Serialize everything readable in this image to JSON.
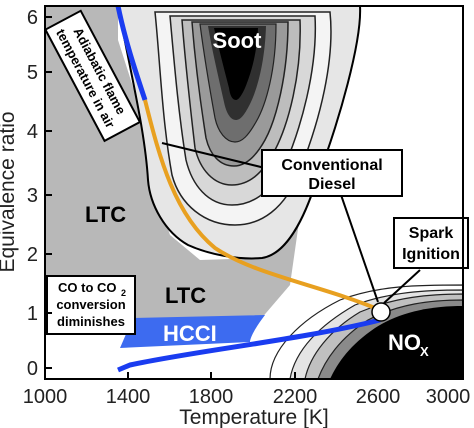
{
  "axes": {
    "x_ticks": [
      "1000",
      "1400",
      "1800",
      "2200",
      "2600",
      "3000"
    ],
    "y_ticks": [
      "0",
      "1",
      "2",
      "3",
      "4",
      "5",
      "6"
    ],
    "xlabel": "Temperature [K]",
    "ylabel": "Equivalence ratio"
  },
  "regions": {
    "soot": "Soot",
    "ltc_upper": "LTC",
    "ltc_lower": "LTC",
    "hcci": "HCCI",
    "nox_main": "NO",
    "nox_sub": "X"
  },
  "callouts": {
    "adiabatic_line1": "Adiabatic flame",
    "adiabatic_line2": "temperature in air",
    "conventional_line1": "Conventional",
    "conventional_line2": "Diesel",
    "spark_line1": "Spark",
    "spark_line2": "Ignition",
    "co_line1_a": "CO to CO",
    "co_line1_sub": "2",
    "co_line2": "conversion",
    "co_line3": "diminishes"
  },
  "colors": {
    "ltc_fill": "#b8b8b8",
    "hcci_fill": "#3d6bf0",
    "blue_line": "#1a3cf0",
    "orange_line": "#e8a020",
    "nox_fill": "#000000"
  }
}
